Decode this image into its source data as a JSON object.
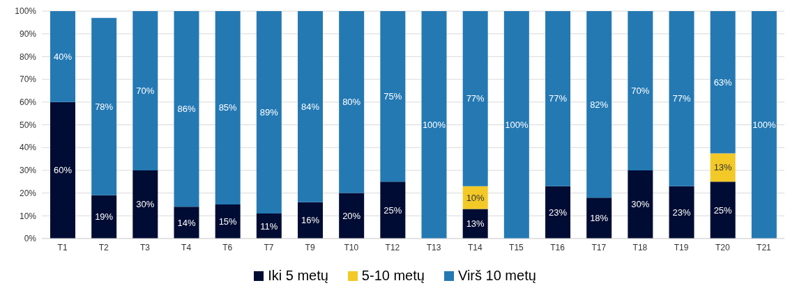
{
  "chart_data": {
    "type": "bar",
    "stacked": true,
    "categories": [
      "T1",
      "T2",
      "T3",
      "T4",
      "T6",
      "T7",
      "T9",
      "T10",
      "T12",
      "T13",
      "T14",
      "T15",
      "T16",
      "T17",
      "T18",
      "T19",
      "T20",
      "T21"
    ],
    "series": [
      {
        "name": "Iki 5 metų",
        "color": "#000c33",
        "values": [
          60,
          19,
          30,
          14,
          15,
          11,
          16,
          20,
          25,
          null,
          13,
          null,
          23,
          18,
          30,
          23,
          25,
          null
        ],
        "value_labels": [
          "60%",
          "19%",
          "30%",
          "14%",
          "15%",
          "11%",
          "16%",
          "20%",
          "25%",
          null,
          "13%",
          null,
          "23%",
          "18%",
          "30%",
          "23%",
          "25%",
          null
        ]
      },
      {
        "name": "5-10 metų",
        "color": "#f2c927",
        "values": [
          null,
          null,
          null,
          null,
          null,
          null,
          null,
          null,
          null,
          null,
          10,
          null,
          null,
          null,
          null,
          null,
          12.5,
          null
        ],
        "value_labels": [
          null,
          null,
          null,
          null,
          null,
          null,
          null,
          null,
          null,
          null,
          "10%",
          null,
          null,
          null,
          null,
          null,
          "13%",
          null
        ]
      },
      {
        "name": "Virš 10 metų",
        "color": "#2479b3",
        "values": [
          40,
          78,
          70,
          86,
          85,
          89,
          84,
          80,
          75,
          100,
          77,
          100,
          77,
          82,
          70,
          77,
          62.5,
          100
        ],
        "value_labels": [
          "40%",
          "78%",
          "70%",
          "86%",
          "85%",
          "89%",
          "84%",
          "80%",
          "75%",
          "100%",
          "77%",
          "100%",
          "77%",
          "82%",
          "70%",
          "77%",
          "63%",
          "100%"
        ]
      }
    ],
    "ylim": [
      0,
      100
    ],
    "yticks": [
      {
        "value": 0,
        "label": "0%"
      },
      {
        "value": 10,
        "label": "10%"
      },
      {
        "value": 20,
        "label": "20%"
      },
      {
        "value": 30,
        "label": "30%"
      },
      {
        "value": 40,
        "label": "40%"
      },
      {
        "value": 50,
        "label": "50%"
      },
      {
        "value": 60,
        "label": "60%"
      },
      {
        "value": 70,
        "label": "70%"
      },
      {
        "value": 80,
        "label": "80%"
      },
      {
        "value": 90,
        "label": "90%"
      },
      {
        "value": 100,
        "label": "100%"
      }
    ],
    "grid": "y",
    "legend": "bottom"
  }
}
